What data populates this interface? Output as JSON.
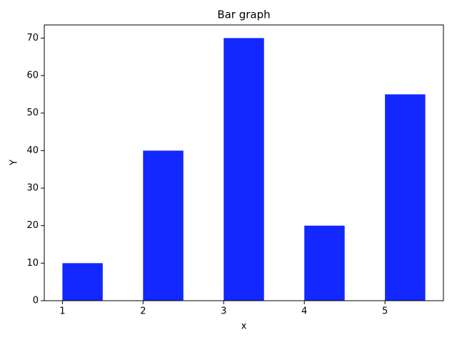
{
  "chart_data": {
    "type": "bar",
    "title": "Bar graph",
    "x_label": "x",
    "y_label": "Y",
    "x": [
      1,
      2,
      3,
      4,
      5
    ],
    "values": [
      10,
      40,
      70,
      20,
      55
    ],
    "color": "#1228ff",
    "xlim": [
      0.775,
      5.725
    ],
    "xticks": [
      1,
      2,
      3,
      4,
      5
    ],
    "ylim": [
      0,
      73.5
    ],
    "yticks": [
      0,
      10,
      20,
      30,
      40,
      50,
      60,
      70
    ]
  }
}
